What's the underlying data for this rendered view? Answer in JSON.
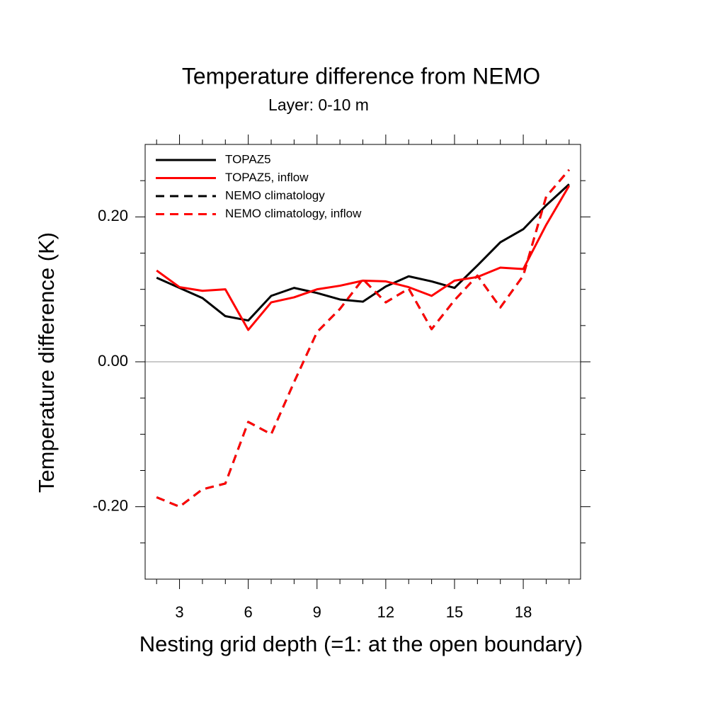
{
  "chart_data": {
    "type": "line",
    "title": "Temperature difference from NEMO",
    "subtitle": "Layer: 0-10 m",
    "x_label": "Nesting grid depth (=1: at the open boundary)",
    "y_label": "Temperature difference (K)",
    "x": [
      2,
      3,
      4,
      5,
      6,
      7,
      8,
      9,
      10,
      11,
      12,
      13,
      14,
      15,
      16,
      17,
      18,
      19,
      20
    ],
    "series": [
      {
        "name": "TOPAZ5",
        "color": "#000000",
        "dash": false,
        "values": [
          0.116,
          0.102,
          0.088,
          0.063,
          0.057,
          0.091,
          0.102,
          0.095,
          0.086,
          0.083,
          0.104,
          0.118,
          0.111,
          0.102,
          0.133,
          0.165,
          0.183,
          0.216,
          0.245
        ]
      },
      {
        "name": "TOPAZ5, inflow",
        "color": "#ff0000",
        "dash": false,
        "values": [
          0.126,
          0.103,
          0.098,
          0.1,
          0.044,
          0.082,
          0.089,
          0.1,
          0.105,
          0.112,
          0.111,
          0.103,
          0.091,
          0.112,
          0.117,
          0.13,
          0.128,
          0.189,
          0.243
        ]
      },
      {
        "name": "NEMO climatology",
        "color": "#000000",
        "dash": true,
        "values": [
          -0.187,
          -0.2,
          -0.176,
          -0.168,
          -0.083,
          -0.1,
          -0.028,
          0.041,
          0.073,
          0.114,
          0.082,
          0.101,
          0.045,
          0.085,
          0.119,
          0.075,
          0.119,
          0.228,
          0.265
        ]
      },
      {
        "name": "NEMO climatology, inflow",
        "color": "#ff0000",
        "dash": true,
        "values": [
          -0.187,
          -0.2,
          -0.176,
          -0.168,
          -0.083,
          -0.1,
          -0.028,
          0.041,
          0.073,
          0.114,
          0.082,
          0.101,
          0.045,
          0.085,
          0.119,
          0.075,
          0.119,
          0.228,
          0.265
        ]
      }
    ],
    "xlim": [
      1.5,
      20.5
    ],
    "ylim": [
      -0.3,
      0.3
    ],
    "xticks": [
      3,
      6,
      9,
      12,
      15,
      18
    ],
    "xminorticks": [
      2,
      4,
      5,
      7,
      8,
      10,
      11,
      13,
      14,
      16,
      17,
      19,
      20
    ],
    "yticks": [
      {
        "value": -0.2,
        "label": "-0.20"
      },
      {
        "value": 0,
        "label": "0.00"
      },
      {
        "value": 0.2,
        "label": "0.20"
      }
    ],
    "yminorticks": [
      -0.25,
      -0.15,
      -0.1,
      -0.05,
      0.05,
      0.1,
      0.15,
      0.25
    ],
    "reference_line": 0,
    "legend": "top-left"
  }
}
